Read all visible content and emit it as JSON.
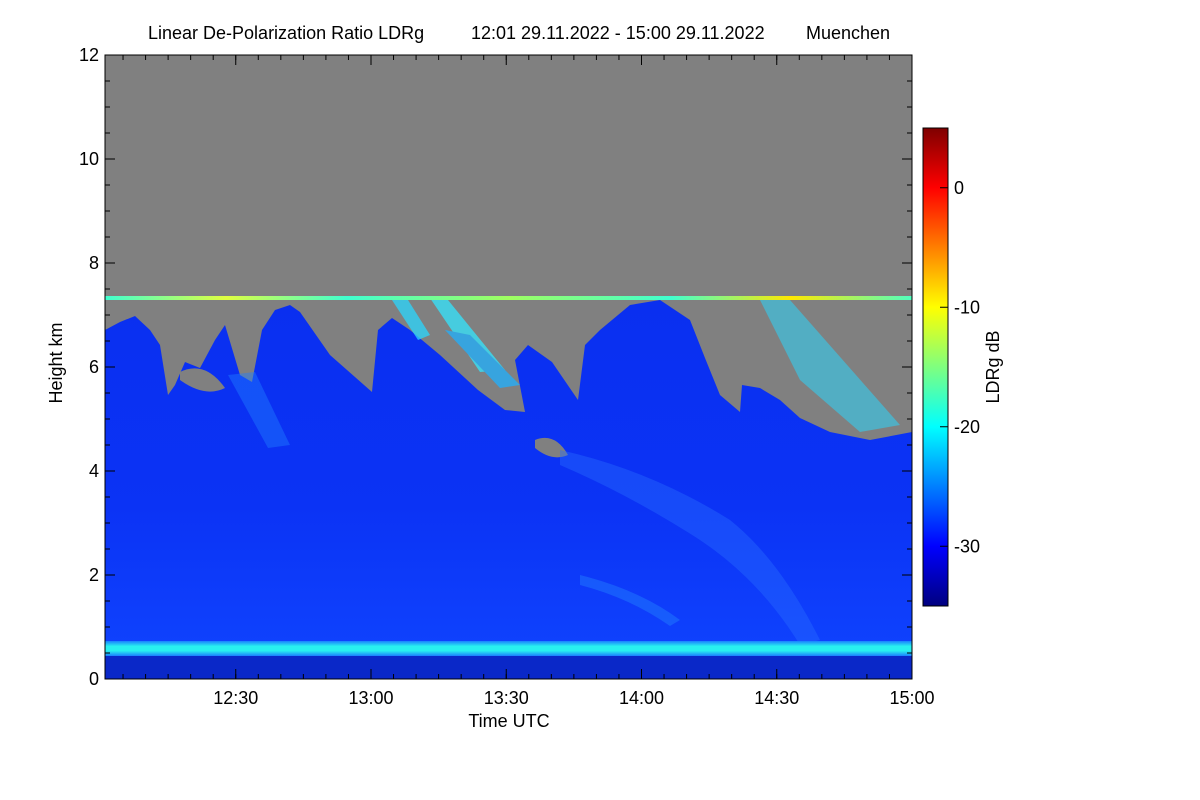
{
  "chart_data": {
    "type": "heatmap",
    "title": "Linear De-Polarization Ratio LDRg",
    "time_range": "12:01 29.11.2022 - 15:00 29.11.2022",
    "location": "Muenchen",
    "xlabel": "Time UTC",
    "ylabel": "Height km",
    "xlim": [
      "12:01",
      "15:00"
    ],
    "ylim": [
      0,
      12
    ],
    "x_ticks": [
      "12:30",
      "13:00",
      "13:30",
      "14:00",
      "14:30",
      "15:00"
    ],
    "y_ticks": [
      0,
      2,
      4,
      6,
      8,
      10,
      12
    ],
    "colorbar": {
      "label": "LDRg dB",
      "range": [
        -35,
        5
      ],
      "ticks": [
        0,
        -10,
        -20,
        -30
      ],
      "colors": [
        "#00007f",
        "#0000ff",
        "#007fff",
        "#00ffff",
        "#7fff7f",
        "#ffff00",
        "#ff7f00",
        "#ff0000",
        "#7f0000"
      ]
    },
    "fill_value_color": "#808080",
    "features": [
      {
        "name": "boundary layer band",
        "height_km": 0.5,
        "ldr_db": -20
      },
      {
        "name": "upper range marker",
        "height_km": 7.3,
        "ldr_db": -12
      },
      {
        "name": "cloud top",
        "start_height_km": 7.0,
        "end_height_km": 4.7
      }
    ]
  }
}
